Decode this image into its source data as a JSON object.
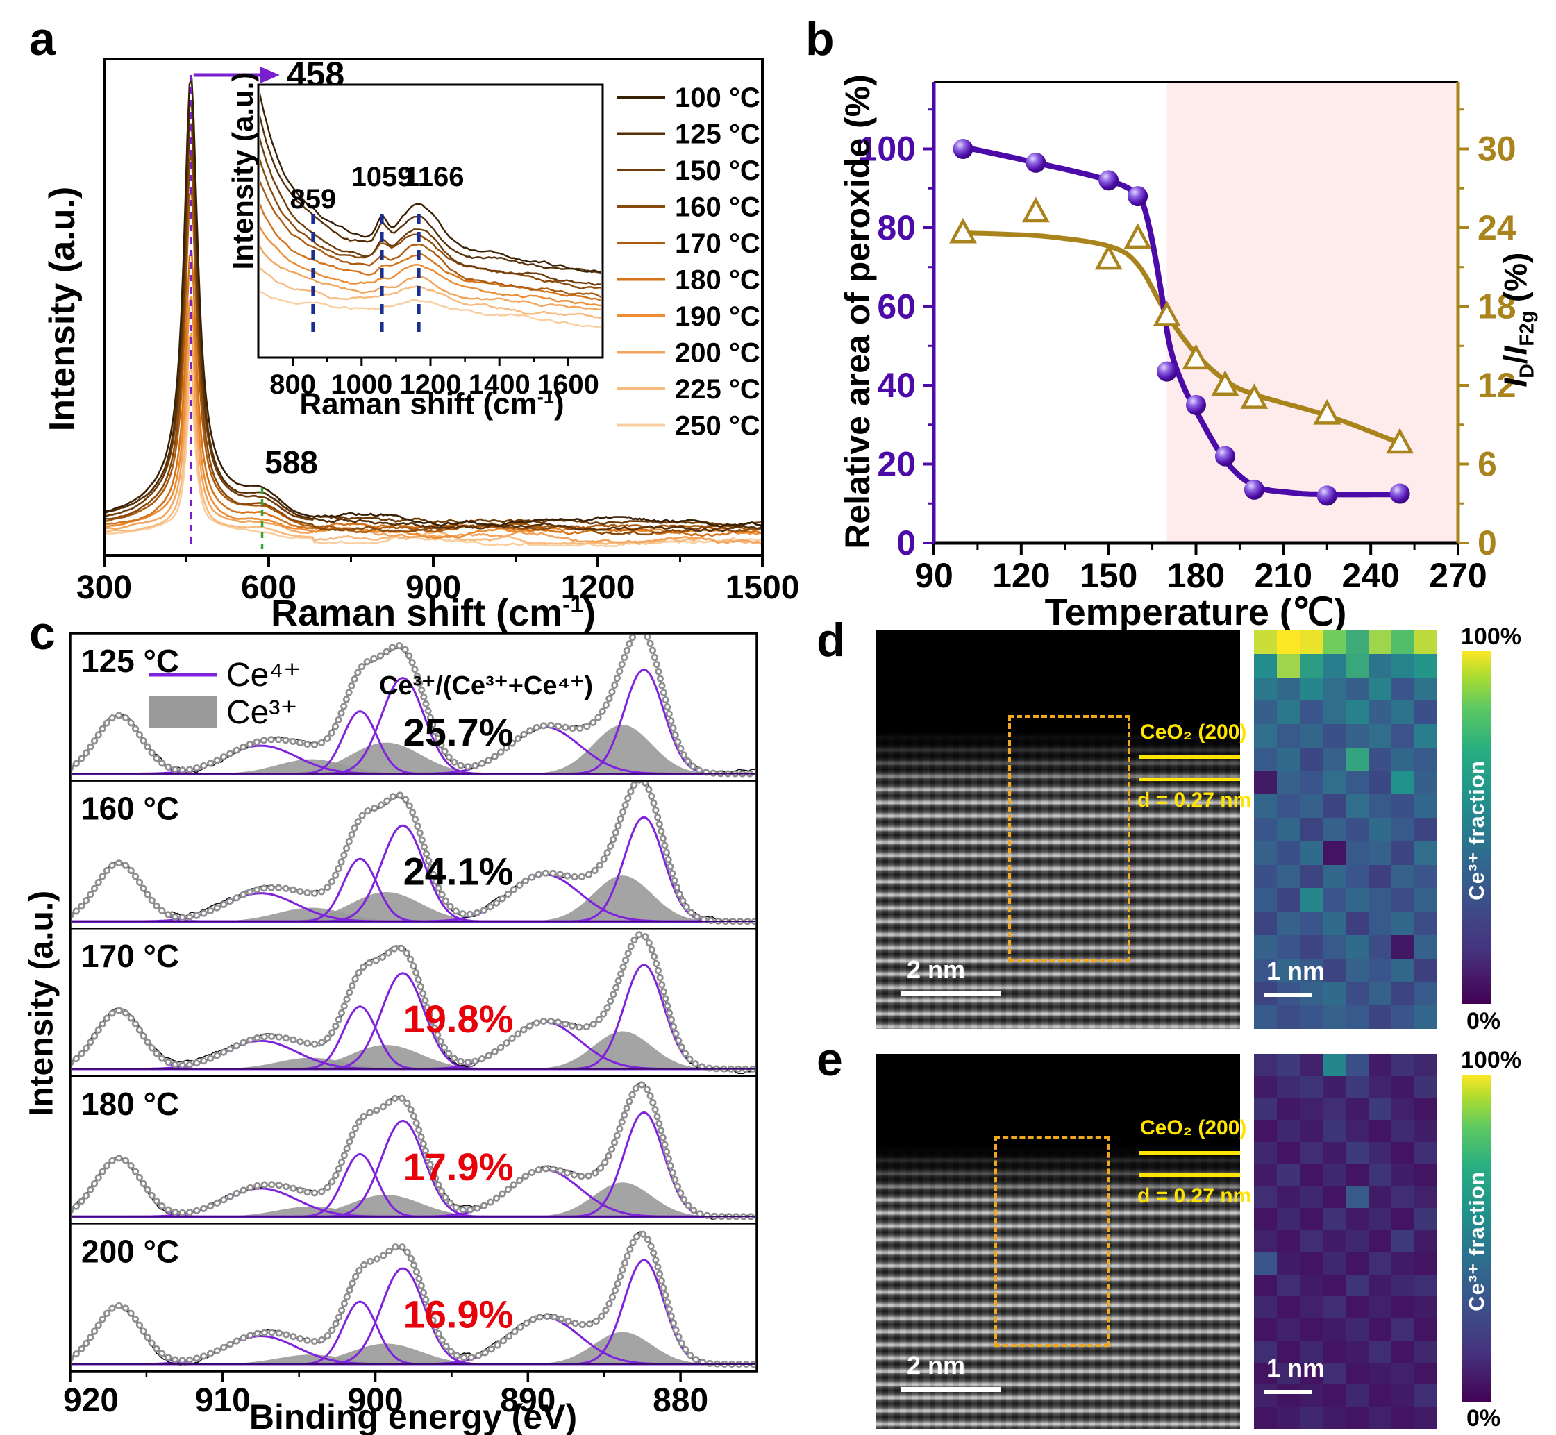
{
  "figure": {
    "panel_letters": {
      "a": "a",
      "b": "b",
      "c": "c",
      "d": "d",
      "e": "e"
    }
  },
  "chart_data": {
    "panel_a": {
      "type": "line",
      "x_label": {
        "pre": "Raman shift (cm",
        "sup": "-1",
        "post": ")"
      },
      "y_label": "Intensity (a.u.)",
      "x_range": [
        300,
        1500
      ],
      "x_ticks": [
        300,
        600,
        900,
        1200,
        1500
      ],
      "peak_annotations": [
        {
          "label": "458",
          "x": 458,
          "style": "purple-dashed-arrow"
        },
        {
          "label": "588",
          "x": 588,
          "style": "green-dashed"
        }
      ],
      "series": [
        {
          "name": "100 °C",
          "color": "#3a2106",
          "rel_amp": 1.0
        },
        {
          "name": "125 °C",
          "color": "#57300a",
          "rel_amp": 0.96
        },
        {
          "name": "150 °C",
          "color": "#6f3d0a",
          "rel_amp": 0.91
        },
        {
          "name": "160 °C",
          "color": "#8a4a0c",
          "rel_amp": 0.85
        },
        {
          "name": "170 °C",
          "color": "#ac5c10",
          "rel_amp": 0.77
        },
        {
          "name": "180 °C",
          "color": "#d4731a",
          "rel_amp": 0.64
        },
        {
          "name": "190 °C",
          "color": "#ec8c33",
          "rel_amp": 0.54
        },
        {
          "name": "200 °C",
          "color": "#f3a45c",
          "rel_amp": 0.46
        },
        {
          "name": "225 °C",
          "color": "#f7bb80",
          "rel_amp": 0.39
        },
        {
          "name": "250 °C",
          "color": "#facfa0",
          "rel_amp": 0.33
        }
      ],
      "inset": {
        "x_label": {
          "pre": "Raman shift (cm",
          "sup": "-1",
          "post": ")"
        },
        "y_label": "Intensity (a.u.)",
        "x_range": [
          700,
          1700
        ],
        "x_ticks": [
          800,
          1000,
          1200,
          1400,
          1600
        ],
        "peak_annotations": [
          {
            "label": "859",
            "x": 859
          },
          {
            "label": "1059",
            "x": 1059
          },
          {
            "label": "1166",
            "x": 1166
          }
        ]
      }
    },
    "panel_b": {
      "type": "scatter-line",
      "x_label": "Temperature (℃)",
      "y_left_label": "Relative area of peroxide (%)",
      "y_right_label_parts": {
        "i1": "I",
        "sub1": "D",
        "slash": "/",
        "i2": "I",
        "sub2": "F2g",
        "rest": " (%)"
      },
      "x_ticks": [
        90,
        120,
        150,
        180,
        210,
        240,
        270
      ],
      "y_left_ticks": [
        0,
        20,
        40,
        60,
        80,
        100
      ],
      "y_right_ticks": [
        0,
        6,
        12,
        18,
        24,
        30
      ],
      "x_range": [
        90,
        270
      ],
      "y_left_range": [
        0,
        117
      ],
      "y_right_range": [
        0,
        35.1
      ],
      "shaded_region_x": [
        170,
        270
      ],
      "shaded_color": "#fdeceb",
      "left_color": "#4c0ba8",
      "right_color": "#a9841c",
      "series": [
        {
          "name": "Relative area of peroxide",
          "axis": "left",
          "marker": "sphere",
          "color": "#4c0ba8",
          "x": [
            100,
            125,
            150,
            160,
            170,
            180,
            190,
            200,
            225,
            250
          ],
          "y": [
            100,
            96.5,
            92,
            88,
            43.5,
            35,
            22,
            13.5,
            12,
            12.5
          ],
          "line_knots": [
            [
              100,
              100.5
            ],
            [
              125,
              96.5
            ],
            [
              150,
              92
            ],
            [
              160,
              88
            ],
            [
              164,
              80
            ],
            [
              168,
              64
            ],
            [
              171,
              50
            ],
            [
              175,
              41
            ],
            [
              180,
              33.5
            ],
            [
              190,
              21
            ],
            [
              200,
              14.5
            ],
            [
              212,
              12.8
            ],
            [
              225,
              12.3
            ],
            [
              250,
              12.3
            ]
          ]
        },
        {
          "name": "ID/IF2g",
          "axis": "right",
          "marker": "triangle",
          "color": "#a9841c",
          "x": [
            100,
            125,
            150,
            160,
            170,
            180,
            190,
            200,
            225,
            250
          ],
          "y": [
            23.6,
            25.2,
            21.6,
            23.2,
            17.3,
            14.0,
            12.0,
            11.0,
            9.8,
            7.6
          ],
          "line_knots": [
            [
              100,
              23.6
            ],
            [
              115,
              23.5
            ],
            [
              130,
              23.3
            ],
            [
              150,
              22.6
            ],
            [
              160,
              21.2
            ],
            [
              170,
              17.4
            ],
            [
              180,
              14.4
            ],
            [
              190,
              12.4
            ],
            [
              200,
              11.3
            ],
            [
              225,
              9.7
            ],
            [
              250,
              7.6
            ]
          ]
        }
      ]
    },
    "panel_c": {
      "type": "line",
      "x_label": "Binding energy (eV)",
      "y_label": "Intensity (a.u.)",
      "x_ticks": [
        920,
        910,
        900,
        890,
        880
      ],
      "x_range": [
        920,
        875
      ],
      "legend": {
        "ce4_label": "Ce⁴⁺",
        "ce3_label": "Ce³⁺",
        "ce4_color": "#7e22dd",
        "ce3_color": "#9a9a9a"
      },
      "ratio_annotation": "Ce³⁺/(Ce³⁺+Ce⁴⁺)",
      "ce4_peaks": [
        [
          916.8,
          0.56,
          1.5
        ],
        [
          907.5,
          0.27,
          2.35
        ],
        [
          901.0,
          0.6,
          1.1
        ],
        [
          898.2,
          0.92,
          1.4
        ],
        [
          888.9,
          0.45,
          2.3
        ],
        [
          882.4,
          1.0,
          1.3
        ]
      ],
      "ce3_peaks": [
        [
          904.2,
          0.14,
          2.2
        ],
        [
          899.3,
          0.3,
          2.3
        ],
        [
          883.8,
          0.47,
          1.9
        ]
      ],
      "panels": [
        {
          "temp": "125 °C",
          "pct": "25.7%",
          "pct_color": "#000000",
          "pct_value": 25.7
        },
        {
          "temp": "160 °C",
          "pct": "24.1%",
          "pct_color": "#000000",
          "pct_value": 24.1
        },
        {
          "temp": "170 °C",
          "pct": "19.8%",
          "pct_color": "#e8000b",
          "pct_value": 19.8
        },
        {
          "temp": "180 °C",
          "pct": "17.9%",
          "pct_color": "#e8000b",
          "pct_value": 17.9
        },
        {
          "temp": "200 °C",
          "pct": "16.9%",
          "pct_color": "#e8000b",
          "pct_value": 16.9
        }
      ]
    },
    "heatmap_d": {
      "type": "heatmap",
      "colorbar": {
        "top": "100%",
        "bottom": "0%",
        "label": "Ce³⁺ fraction"
      },
      "scale_bar": "1 nm",
      "values": [
        [
          92,
          100,
          97,
          78,
          62,
          85,
          70,
          90
        ],
        [
          48,
          85,
          55,
          42,
          60,
          38,
          45,
          52
        ],
        [
          40,
          34,
          46,
          36,
          30,
          44,
          26,
          38
        ],
        [
          30,
          40,
          26,
          36,
          44,
          30,
          38,
          24
        ],
        [
          36,
          28,
          33,
          24,
          31,
          36,
          25,
          42
        ],
        [
          28,
          35,
          22,
          31,
          58,
          24,
          33,
          28
        ],
        [
          8,
          31,
          26,
          36,
          28,
          22,
          50,
          30
        ],
        [
          33,
          26,
          31,
          21,
          36,
          28,
          24,
          33
        ],
        [
          26,
          33,
          20,
          31,
          24,
          35,
          28,
          21
        ],
        [
          31,
          24,
          35,
          6,
          28,
          31,
          21,
          36
        ],
        [
          24,
          31,
          21,
          33,
          26,
          19,
          31,
          26
        ],
        [
          28,
          21,
          46,
          26,
          33,
          28,
          23,
          31
        ],
        [
          21,
          31,
          26,
          35,
          19,
          28,
          33,
          23
        ],
        [
          31,
          26,
          21,
          28,
          35,
          23,
          7,
          31
        ],
        [
          26,
          33,
          28,
          21,
          31,
          26,
          33,
          19
        ],
        [
          21,
          26,
          31,
          35,
          23,
          31,
          21,
          28
        ],
        [
          28,
          23,
          26,
          31,
          28,
          21,
          26,
          33
        ]
      ]
    },
    "heatmap_e": {
      "type": "heatmap",
      "colorbar": {
        "top": "100%",
        "bottom": "0%",
        "label": "Ce³⁺ fraction"
      },
      "scale_bar": "1 nm",
      "values": [
        [
          14,
          18,
          10,
          46,
          24,
          8,
          15,
          12
        ],
        [
          8,
          13,
          16,
          9,
          18,
          11,
          7,
          15
        ],
        [
          15,
          7,
          10,
          14,
          8,
          18,
          10,
          6
        ],
        [
          6,
          12,
          8,
          16,
          10,
          6,
          13,
          9
        ],
        [
          12,
          6,
          14,
          8,
          18,
          12,
          6,
          14
        ],
        [
          8,
          15,
          6,
          12,
          6,
          16,
          9,
          6
        ],
        [
          14,
          8,
          12,
          6,
          28,
          8,
          14,
          10
        ],
        [
          6,
          12,
          6,
          15,
          8,
          12,
          6,
          16
        ],
        [
          10,
          6,
          14,
          8,
          12,
          6,
          18,
          8
        ],
        [
          26,
          8,
          6,
          12,
          6,
          14,
          8,
          6
        ],
        [
          6,
          14,
          8,
          6,
          16,
          8,
          12,
          14
        ],
        [
          12,
          6,
          10,
          14,
          6,
          10,
          6,
          8
        ],
        [
          6,
          10,
          6,
          8,
          12,
          6,
          14,
          6
        ],
        [
          14,
          6,
          12,
          6,
          8,
          14,
          6,
          12
        ],
        [
          6,
          12,
          6,
          14,
          6,
          8,
          10,
          6
        ],
        [
          10,
          6,
          8,
          6,
          12,
          6,
          8,
          14
        ],
        [
          6,
          8,
          12,
          8,
          6,
          10,
          6,
          8
        ]
      ]
    }
  },
  "panel_d": {
    "stem": {
      "phase_label": "CeO₂ (200)",
      "d_spacing": "d = 0.27 nm",
      "scale_bar": "2 nm"
    },
    "colorbar_top": "100%",
    "colorbar_bottom": "0%",
    "colorbar_label": "Ce³⁺ fraction",
    "map_scale_bar": "1 nm"
  },
  "panel_e": {
    "stem": {
      "phase_label": "CeO₂ (200)",
      "d_spacing": "d = 0.27 nm",
      "scale_bar": "2 nm"
    },
    "colorbar_top": "100%",
    "colorbar_bottom": "0%",
    "colorbar_label": "Ce³⁺ fraction",
    "map_scale_bar": "1 nm"
  }
}
